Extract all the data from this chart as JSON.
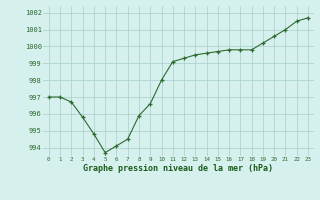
{
  "x": [
    0,
    1,
    2,
    3,
    4,
    5,
    6,
    7,
    8,
    9,
    10,
    11,
    12,
    13,
    14,
    15,
    16,
    17,
    18,
    19,
    20,
    21,
    22,
    23
  ],
  "y": [
    997.0,
    997.0,
    996.7,
    995.8,
    994.8,
    993.7,
    994.1,
    994.5,
    995.9,
    996.6,
    998.0,
    999.1,
    999.3,
    999.5,
    999.6,
    999.7,
    999.8,
    999.8,
    999.8,
    1000.2,
    1000.6,
    1001.0,
    1001.5,
    1001.7
  ],
  "line_color": "#2d6a2d",
  "marker_color": "#2d6a2d",
  "bg_color": "#d6f0ee",
  "grid_color": "#aed4d0",
  "xlabel": "Graphe pression niveau de la mer (hPa)",
  "xlabel_color": "#1a5c1a",
  "tick_color": "#2d6a2d",
  "ylim": [
    993.5,
    1002.4
  ],
  "xlim": [
    -0.5,
    23.5
  ],
  "yticks": [
    994,
    995,
    996,
    997,
    998,
    999,
    1000,
    1001,
    1002
  ],
  "xticks": [
    0,
    1,
    2,
    3,
    4,
    5,
    6,
    7,
    8,
    9,
    10,
    11,
    12,
    13,
    14,
    15,
    16,
    17,
    18,
    19,
    20,
    21,
    22,
    23
  ]
}
